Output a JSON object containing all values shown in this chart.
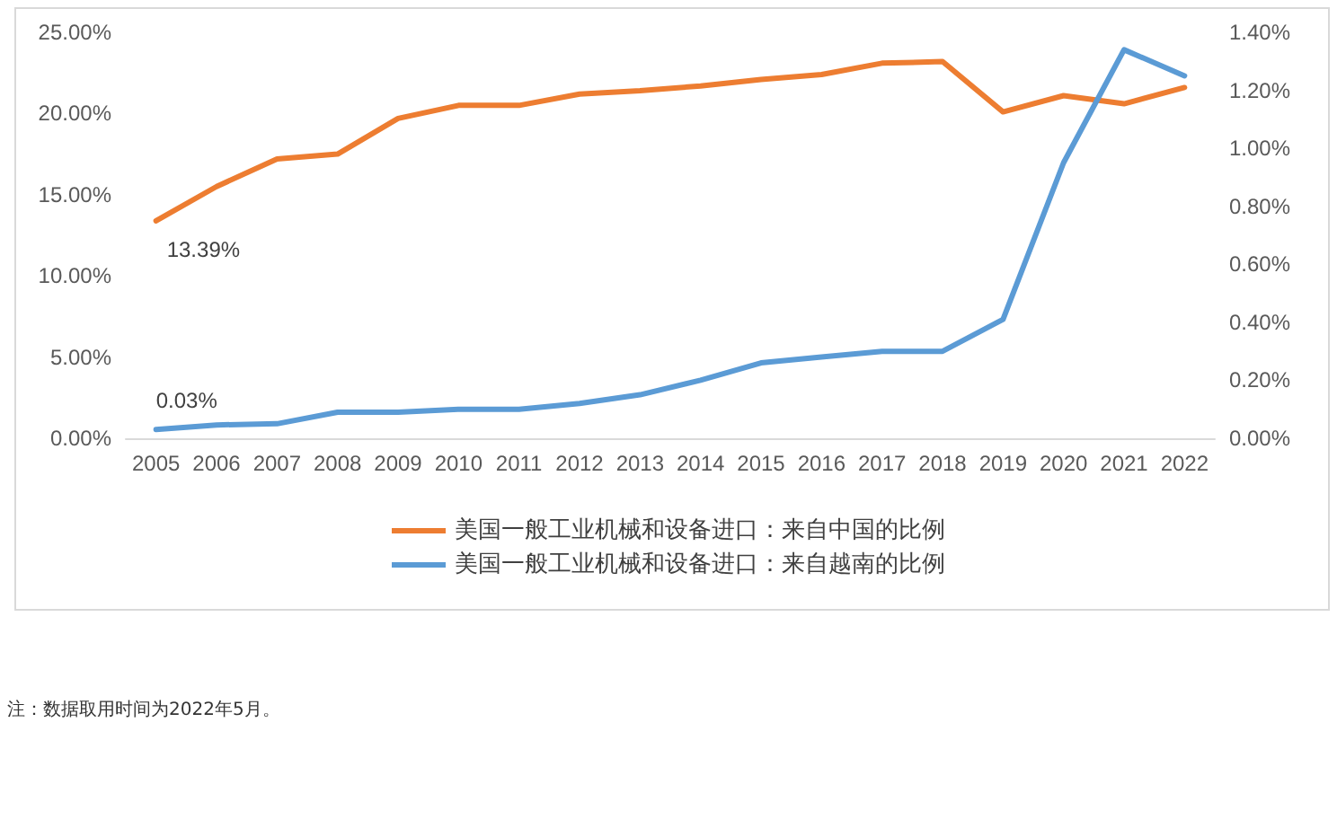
{
  "chart_data": {
    "type": "line",
    "categories": [
      "2005",
      "2006",
      "2007",
      "2008",
      "2009",
      "2010",
      "2011",
      "2012",
      "2013",
      "2014",
      "2015",
      "2016",
      "2017",
      "2018",
      "2019",
      "2020",
      "2021",
      "2022"
    ],
    "series": [
      {
        "name": "美国一般工业机械和设备进口：来自中国的比例",
        "color": "#ed7d31",
        "values": [
          13.39,
          15.5,
          17.2,
          17.5,
          19.7,
          20.5,
          20.5,
          21.2,
          21.4,
          21.7,
          22.1,
          22.4,
          23.1,
          23.2,
          20.1,
          21.1,
          20.6,
          21.6
        ],
        "value_labels": [
          "13.39%",
          null,
          null,
          null,
          null,
          null,
          null,
          null,
          null,
          null,
          null,
          null,
          null,
          null,
          null,
          null,
          null,
          null
        ]
      },
      {
        "name": "美国一般工业机械和设备进口：来自越南的比例",
        "color": "#5b9bd5",
        "axis": "y2",
        "values": [
          0.03,
          0.046,
          0.05,
          0.09,
          0.09,
          0.1,
          0.1,
          0.12,
          0.15,
          0.2,
          0.26,
          0.28,
          0.3,
          0.3,
          0.41,
          0.95,
          1.34,
          1.25
        ],
        "value_labels": [
          "0.03%",
          null,
          null,
          null,
          null,
          null,
          null,
          null,
          null,
          null,
          null,
          null,
          null,
          null,
          null,
          null,
          null,
          null
        ]
      }
    ],
    "ylim": [
      0,
      25
    ],
    "yticks": [
      {
        "value": 0,
        "label": "0.00%"
      },
      {
        "value": 5,
        "label": "5.00%"
      },
      {
        "value": 10,
        "label": "10.00%"
      },
      {
        "value": 15,
        "label": "15.00%"
      },
      {
        "value": 20,
        "label": "20.00%"
      },
      {
        "value": 25,
        "label": "25.00%"
      }
    ],
    "y2lim": [
      0,
      1.4
    ],
    "y2ticks": [
      {
        "value": 0,
        "label": "0.00%"
      },
      {
        "value": 0.2,
        "label": "0.20%"
      },
      {
        "value": 0.4,
        "label": "0.40%"
      },
      {
        "value": 0.6,
        "label": "0.60%"
      },
      {
        "value": 0.8,
        "label": "0.80%"
      },
      {
        "value": 1.0,
        "label": "1.00%"
      },
      {
        "value": 1.2,
        "label": "1.20%"
      },
      {
        "value": 1.4,
        "label": "1.40%"
      }
    ],
    "grid": false,
    "legend": "bottom",
    "marker": "none",
    "line_style": "solid",
    "annotations": [
      "注：数据取用时间为2022年5月。"
    ]
  }
}
